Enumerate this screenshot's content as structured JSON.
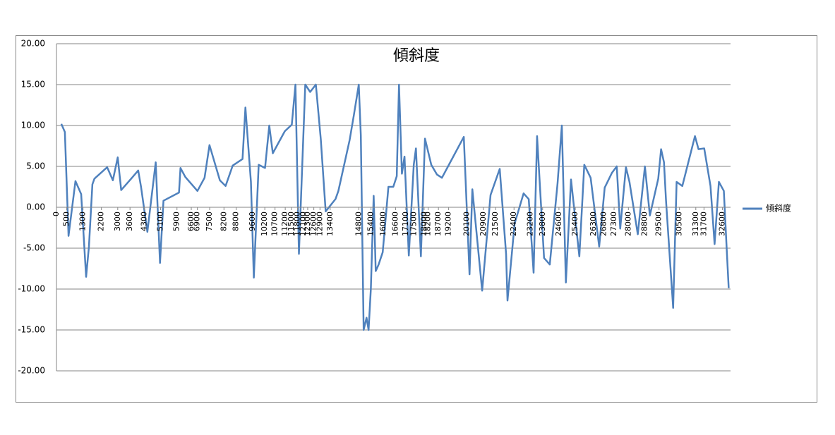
{
  "chart_data": {
    "type": "line",
    "title": "傾斜度",
    "series": [
      {
        "name": "傾斜度",
        "color": "#4f81bd",
        "x": [
          240,
          410,
          590,
          930,
          1210,
          1450,
          1590,
          1760,
          1860,
          2480,
          2760,
          3000,
          3170,
          3730,
          4000,
          4140,
          4450,
          4860,
          5070,
          5240,
          6000,
          6070,
          6310,
          6900,
          7250,
          7490,
          8000,
          8280,
          8630,
          9110,
          9250,
          9520,
          9660,
          9900,
          10210,
          10420,
          10590,
          11180,
          11520,
          11700,
          11870,
          12180,
          12420,
          12700,
          12940,
          13180,
          13660,
          13800,
          14350,
          14560,
          14800,
          14900,
          15040,
          15180,
          15280,
          15390,
          15530,
          15630,
          15770,
          15970,
          16250,
          16490,
          16660,
          16770,
          16910,
          17040,
          17250,
          17490,
          17600,
          17840,
          18040,
          18350,
          18630,
          18870,
          19940,
          20220,
          20360,
          20840,
          21250,
          21700,
          22010,
          22080,
          22430,
          22870,
          23120,
          23360,
          23530,
          23870,
          24150,
          24530,
          24740,
          24940,
          25190,
          25600,
          25840,
          26150,
          26570,
          26840,
          27190,
          27430,
          27600,
          27880,
          28050,
          28460,
          28810,
          29050,
          29460,
          29600,
          29740,
          29840,
          30190,
          30360,
          30640,
          31260,
          31430,
          31710,
          32020,
          32220,
          32430,
          32670,
          32810,
          32910
        ],
        "values": [
          10.2,
          9.2,
          -3.5,
          3.2,
          1.6,
          -8.5,
          -4.8,
          2.8,
          3.5,
          4.9,
          3.3,
          6.1,
          2.1,
          3.7,
          4.5,
          2.5,
          -3,
          5.5,
          -6.8,
          0.8,
          1.8,
          4.8,
          3.7,
          2.0,
          3.6,
          7.6,
          3.3,
          2.6,
          5.1,
          5.9,
          12.2,
          3.1,
          -8.6,
          5.2,
          4.8,
          10.0,
          6.6,
          9.3,
          10.1,
          15,
          -5.7,
          15,
          14.1,
          15,
          8.3,
          -0.5,
          1.0,
          2.0,
          8.2,
          11.3,
          15,
          8.8,
          -15,
          -13.5,
          -15,
          -10,
          1.4,
          -7.8,
          -7,
          -5.5,
          2.5,
          2.5,
          3.8,
          15,
          4.1,
          6.2,
          -5.9,
          5.2,
          7.2,
          -6,
          8.4,
          5.2,
          4.0,
          3.6,
          8.6,
          -8.2,
          2.2,
          -10.2,
          1.5,
          4.7,
          -5.7,
          -11.4,
          -2,
          1.7,
          1.0,
          -8,
          8.7,
          -6.2,
          -7,
          2.9,
          10.0,
          -9.2,
          3.4,
          -6,
          5.2,
          3.6,
          -4.8,
          2.4,
          4.2,
          5.0,
          -2.6,
          4.9,
          3.1,
          -3.3,
          5.0,
          -1,
          3.5,
          7.1,
          5.5,
          0.8,
          -12.3,
          3.1,
          2.6,
          8.7,
          7.1,
          7.2,
          2.6,
          -4.5,
          3.1,
          2.0,
          -5,
          -9.9
        ]
      }
    ],
    "xlim": [
      0,
      33000
    ],
    "xticks": [
      0,
      500,
      1300,
      2200,
      3000,
      3600,
      4300,
      5100,
      5900,
      6600,
      6900,
      7500,
      8200,
      8800,
      9600,
      10200,
      10700,
      11200,
      11500,
      11800,
      12100,
      12300,
      12600,
      12900,
      13400,
      14800,
      15400,
      16000,
      16600,
      17100,
      17500,
      18000,
      18200,
      18700,
      19200,
      20100,
      20900,
      21500,
      22400,
      23200,
      23800,
      24600,
      25400,
      26300,
      26800,
      27300,
      28000,
      28800,
      29500,
      30500,
      31300,
      31700,
      32600
    ],
    "ylim": [
      -20,
      20
    ],
    "yticks": [
      {
        "value": -20,
        "label": "-20.00"
      },
      {
        "value": -15,
        "label": "-15.00"
      },
      {
        "value": -10,
        "label": "-10.00"
      },
      {
        "value": -5,
        "label": "-5.00"
      },
      {
        "value": 0,
        "label": "0.00"
      },
      {
        "value": 5,
        "label": "5.00"
      },
      {
        "value": 10,
        "label": "10.00"
      },
      {
        "value": 15,
        "label": "15.00"
      },
      {
        "value": 20,
        "label": "20.00"
      }
    ],
    "grid": true,
    "legend": "right"
  }
}
